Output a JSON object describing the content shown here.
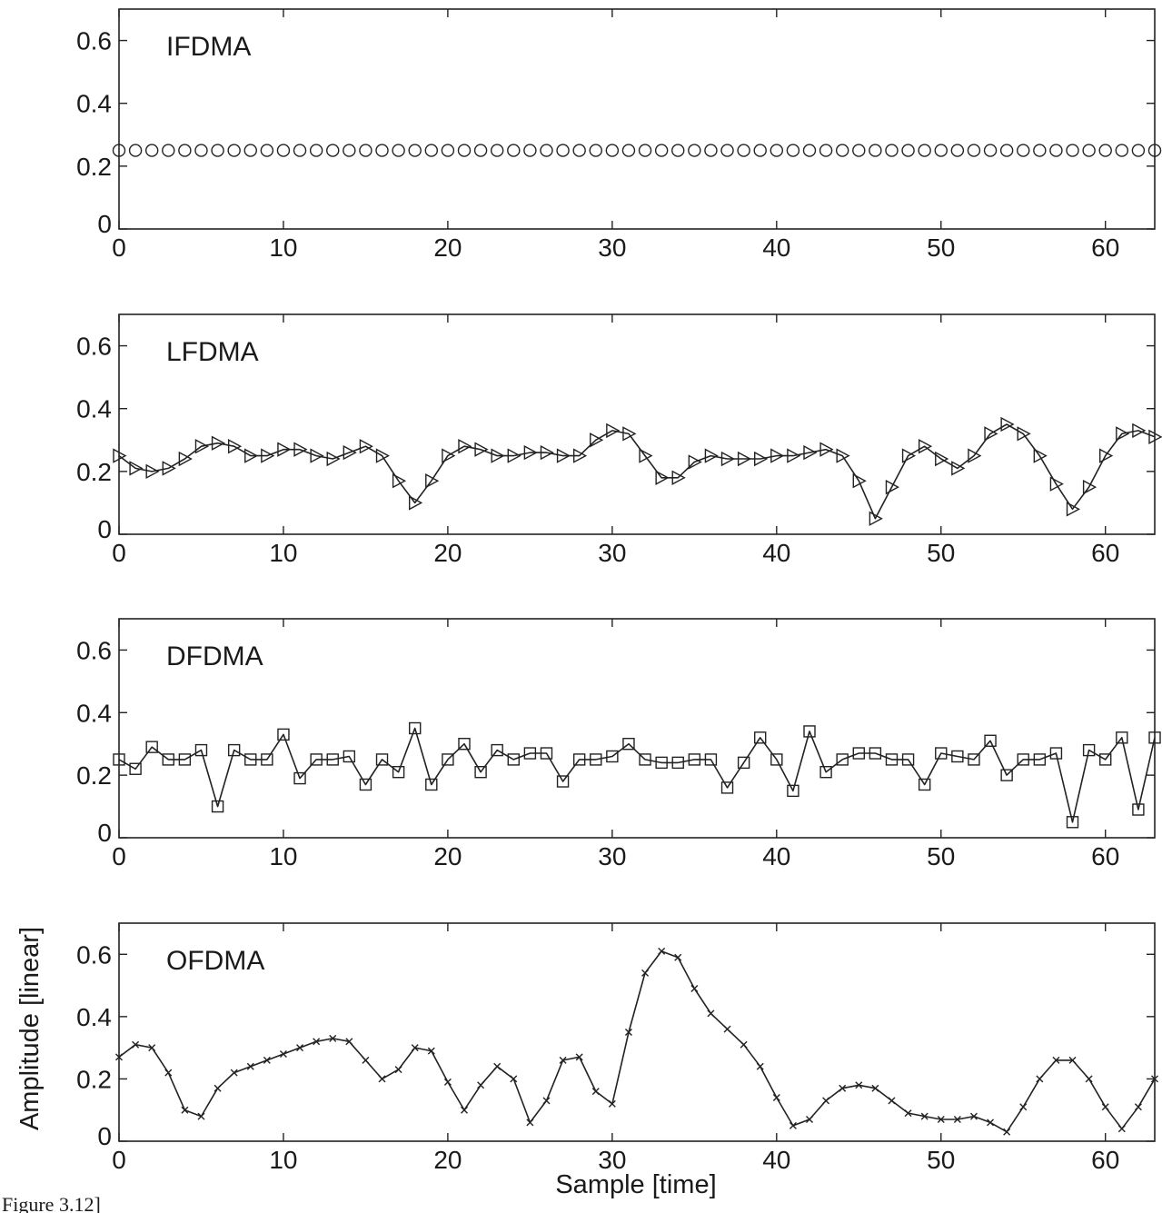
{
  "figure": {
    "caption": "Figure 3.12]",
    "xlabel": "Sample [time]",
    "ylabel": "Amplitude [linear]"
  },
  "chart_data": [
    {
      "type": "line",
      "title": "IFDMA",
      "marker": "circle",
      "xlim": [
        0,
        63
      ],
      "ylim": [
        0,
        0.7
      ],
      "xticks": [
        0,
        10,
        20,
        30,
        40,
        50,
        60
      ],
      "yticks": [
        0,
        0.2,
        0.4,
        0.6
      ],
      "xtick_labels": [
        "0",
        "10",
        "20",
        "30",
        "40",
        "50",
        "60"
      ],
      "ytick_labels": [
        "0",
        "0.2",
        "0.4",
        "0.6"
      ],
      "series": [
        {
          "values": [
            0.25,
            0.25,
            0.25,
            0.25,
            0.25,
            0.25,
            0.25,
            0.25,
            0.25,
            0.25,
            0.25,
            0.25,
            0.25,
            0.25,
            0.25,
            0.25,
            0.25,
            0.25,
            0.25,
            0.25,
            0.25,
            0.25,
            0.25,
            0.25,
            0.25,
            0.25,
            0.25,
            0.25,
            0.25,
            0.25,
            0.25,
            0.25,
            0.25,
            0.25,
            0.25,
            0.25,
            0.25,
            0.25,
            0.25,
            0.25,
            0.25,
            0.25,
            0.25,
            0.25,
            0.25,
            0.25,
            0.25,
            0.25,
            0.25,
            0.25,
            0.25,
            0.25,
            0.25,
            0.25,
            0.25,
            0.25,
            0.25,
            0.25,
            0.25,
            0.25,
            0.25,
            0.25,
            0.25,
            0.25
          ]
        }
      ]
    },
    {
      "type": "line",
      "title": "LFDMA",
      "marker": "triangle-right",
      "xlim": [
        0,
        63
      ],
      "ylim": [
        0,
        0.7
      ],
      "xticks": [
        0,
        10,
        20,
        30,
        40,
        50,
        60
      ],
      "yticks": [
        0,
        0.2,
        0.4,
        0.6
      ],
      "xtick_labels": [
        "0",
        "10",
        "20",
        "30",
        "40",
        "50",
        "60"
      ],
      "ytick_labels": [
        "0",
        "0.2",
        "0.4",
        "0.6"
      ],
      "series": [
        {
          "values": [
            0.25,
            0.21,
            0.2,
            0.21,
            0.24,
            0.28,
            0.29,
            0.28,
            0.25,
            0.25,
            0.27,
            0.27,
            0.25,
            0.24,
            0.26,
            0.28,
            0.25,
            0.17,
            0.1,
            0.17,
            0.25,
            0.28,
            0.27,
            0.25,
            0.25,
            0.26,
            0.26,
            0.25,
            0.25,
            0.3,
            0.33,
            0.32,
            0.25,
            0.18,
            0.18,
            0.23,
            0.25,
            0.24,
            0.24,
            0.24,
            0.25,
            0.25,
            0.26,
            0.27,
            0.25,
            0.17,
            0.05,
            0.15,
            0.25,
            0.28,
            0.24,
            0.21,
            0.25,
            0.32,
            0.35,
            0.32,
            0.25,
            0.16,
            0.08,
            0.15,
            0.25,
            0.32,
            0.33,
            0.31
          ]
        }
      ]
    },
    {
      "type": "line",
      "title": "DFDMA",
      "marker": "square",
      "xlim": [
        0,
        63
      ],
      "ylim": [
        0,
        0.7
      ],
      "xticks": [
        0,
        10,
        20,
        30,
        40,
        50,
        60
      ],
      "yticks": [
        0,
        0.2,
        0.4,
        0.6
      ],
      "xtick_labels": [
        "0",
        "10",
        "20",
        "30",
        "40",
        "50",
        "60"
      ],
      "ytick_labels": [
        "0",
        "0.2",
        "0.4",
        "0.6"
      ],
      "series": [
        {
          "values": [
            0.25,
            0.22,
            0.29,
            0.25,
            0.25,
            0.28,
            0.1,
            0.28,
            0.25,
            0.25,
            0.33,
            0.19,
            0.25,
            0.25,
            0.26,
            0.17,
            0.25,
            0.21,
            0.35,
            0.17,
            0.25,
            0.3,
            0.21,
            0.28,
            0.25,
            0.27,
            0.27,
            0.18,
            0.25,
            0.25,
            0.26,
            0.3,
            0.25,
            0.24,
            0.24,
            0.25,
            0.25,
            0.16,
            0.24,
            0.32,
            0.25,
            0.15,
            0.34,
            0.21,
            0.25,
            0.27,
            0.27,
            0.25,
            0.25,
            0.17,
            0.27,
            0.26,
            0.25,
            0.31,
            0.2,
            0.25,
            0.25,
            0.27,
            0.05,
            0.28,
            0.25,
            0.32,
            0.09,
            0.32
          ]
        }
      ]
    },
    {
      "type": "line",
      "title": "OFDMA",
      "marker": "x",
      "xlim": [
        0,
        63
      ],
      "ylim": [
        0,
        0.7
      ],
      "xticks": [
        0,
        10,
        20,
        30,
        40,
        50,
        60
      ],
      "yticks": [
        0,
        0.2,
        0.4,
        0.6
      ],
      "xtick_labels": [
        "0",
        "10",
        "20",
        "30",
        "40",
        "50",
        "60"
      ],
      "ytick_labels": [
        "0",
        "0.2",
        "0.4",
        "0.6"
      ],
      "series": [
        {
          "values": [
            0.27,
            0.31,
            0.3,
            0.22,
            0.1,
            0.08,
            0.17,
            0.22,
            0.24,
            0.26,
            0.28,
            0.3,
            0.32,
            0.33,
            0.32,
            0.26,
            0.2,
            0.23,
            0.3,
            0.29,
            0.19,
            0.1,
            0.18,
            0.24,
            0.2,
            0.06,
            0.13,
            0.26,
            0.27,
            0.16,
            0.12,
            0.35,
            0.54,
            0.61,
            0.59,
            0.49,
            0.41,
            0.36,
            0.31,
            0.24,
            0.14,
            0.05,
            0.07,
            0.13,
            0.17,
            0.18,
            0.17,
            0.13,
            0.09,
            0.08,
            0.07,
            0.07,
            0.08,
            0.06,
            0.03,
            0.11,
            0.2,
            0.26,
            0.26,
            0.2,
            0.11,
            0.04,
            0.11,
            0.2
          ]
        }
      ]
    }
  ]
}
